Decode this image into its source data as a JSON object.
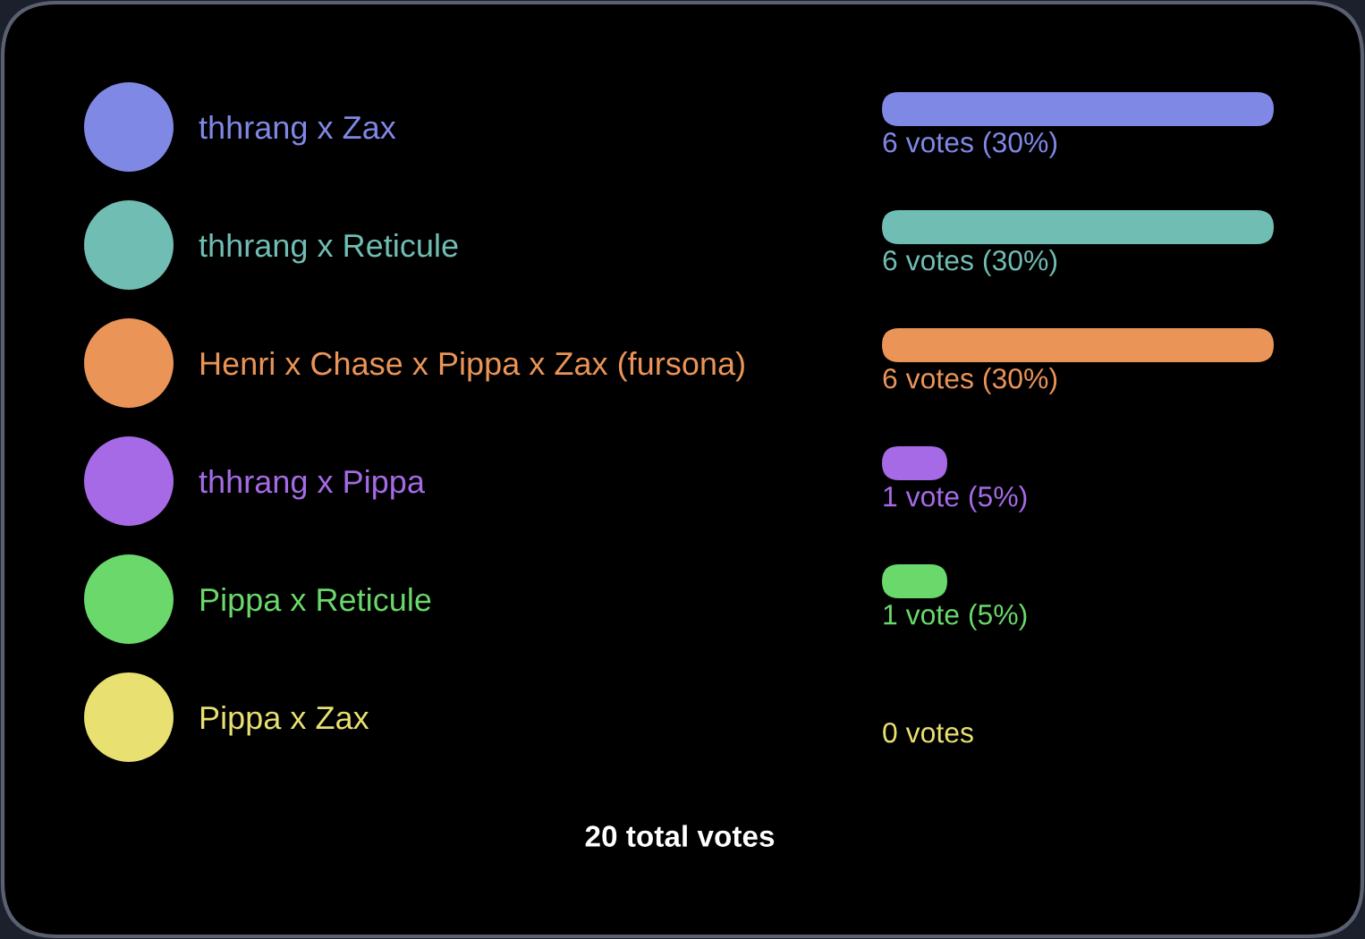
{
  "chart_data": {
    "type": "bar",
    "orientation": "horizontal",
    "categories": [
      "thhrang x Zax",
      "thhrang x Reticule",
      "Henri x Chase x Pippa x Zax (fursona)",
      "thhrang x Pippa",
      "Pippa x Reticule",
      "Pippa x Zax"
    ],
    "values": [
      6,
      6,
      6,
      1,
      1,
      0
    ],
    "colors": [
      "#8088e6",
      "#70bdb4",
      "#eb9457",
      "#a66ae6",
      "#6ad86a",
      "#e8e070"
    ],
    "value_labels": [
      "6 votes (30%)",
      "6 votes (30%)",
      "6 votes (30%)",
      "1 vote (5%)",
      "1 vote (5%)",
      "0 votes"
    ],
    "annotations": [
      "20 total votes"
    ]
  }
}
